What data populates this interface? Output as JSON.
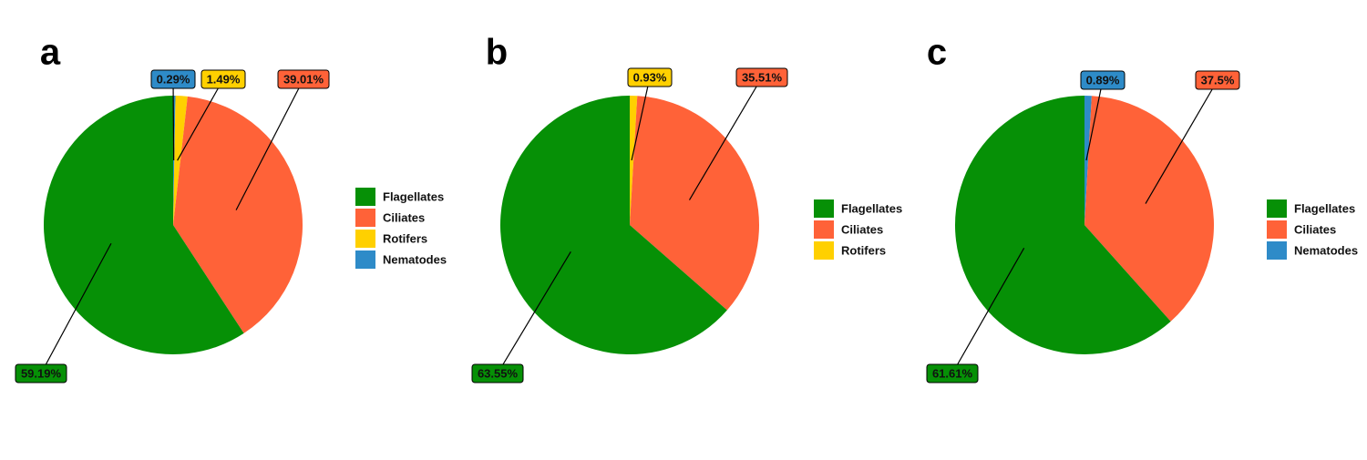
{
  "chart_data": [
    {
      "type": "pie",
      "title": "a",
      "categories": [
        "Flagellates",
        "Ciliates",
        "Rotifers",
        "Nematodes"
      ],
      "values": [
        59.19,
        39.01,
        1.49,
        0.29
      ],
      "value_labels": [
        "59.19%",
        "39.01%",
        "1.49%",
        "0.29%"
      ],
      "colors": [
        "#069006",
        "#ff6238",
        "#ffd000",
        "#2e8bc8"
      ]
    },
    {
      "type": "pie",
      "title": "b",
      "categories": [
        "Flagellates",
        "Ciliates",
        "Rotifers"
      ],
      "values": [
        63.55,
        35.51,
        0.93
      ],
      "value_labels": [
        "63.55%",
        "35.51%",
        "0.93%"
      ],
      "colors": [
        "#069006",
        "#ff6238",
        "#ffd000"
      ]
    },
    {
      "type": "pie",
      "title": "c",
      "categories": [
        "Flagellates",
        "Ciliates",
        "Nematodes"
      ],
      "values": [
        61.61,
        37.5,
        0.89
      ],
      "value_labels": [
        "61.61%",
        "37.5%",
        "0.89%"
      ],
      "colors": [
        "#069006",
        "#ff6238",
        "#2e8bc8"
      ]
    }
  ]
}
